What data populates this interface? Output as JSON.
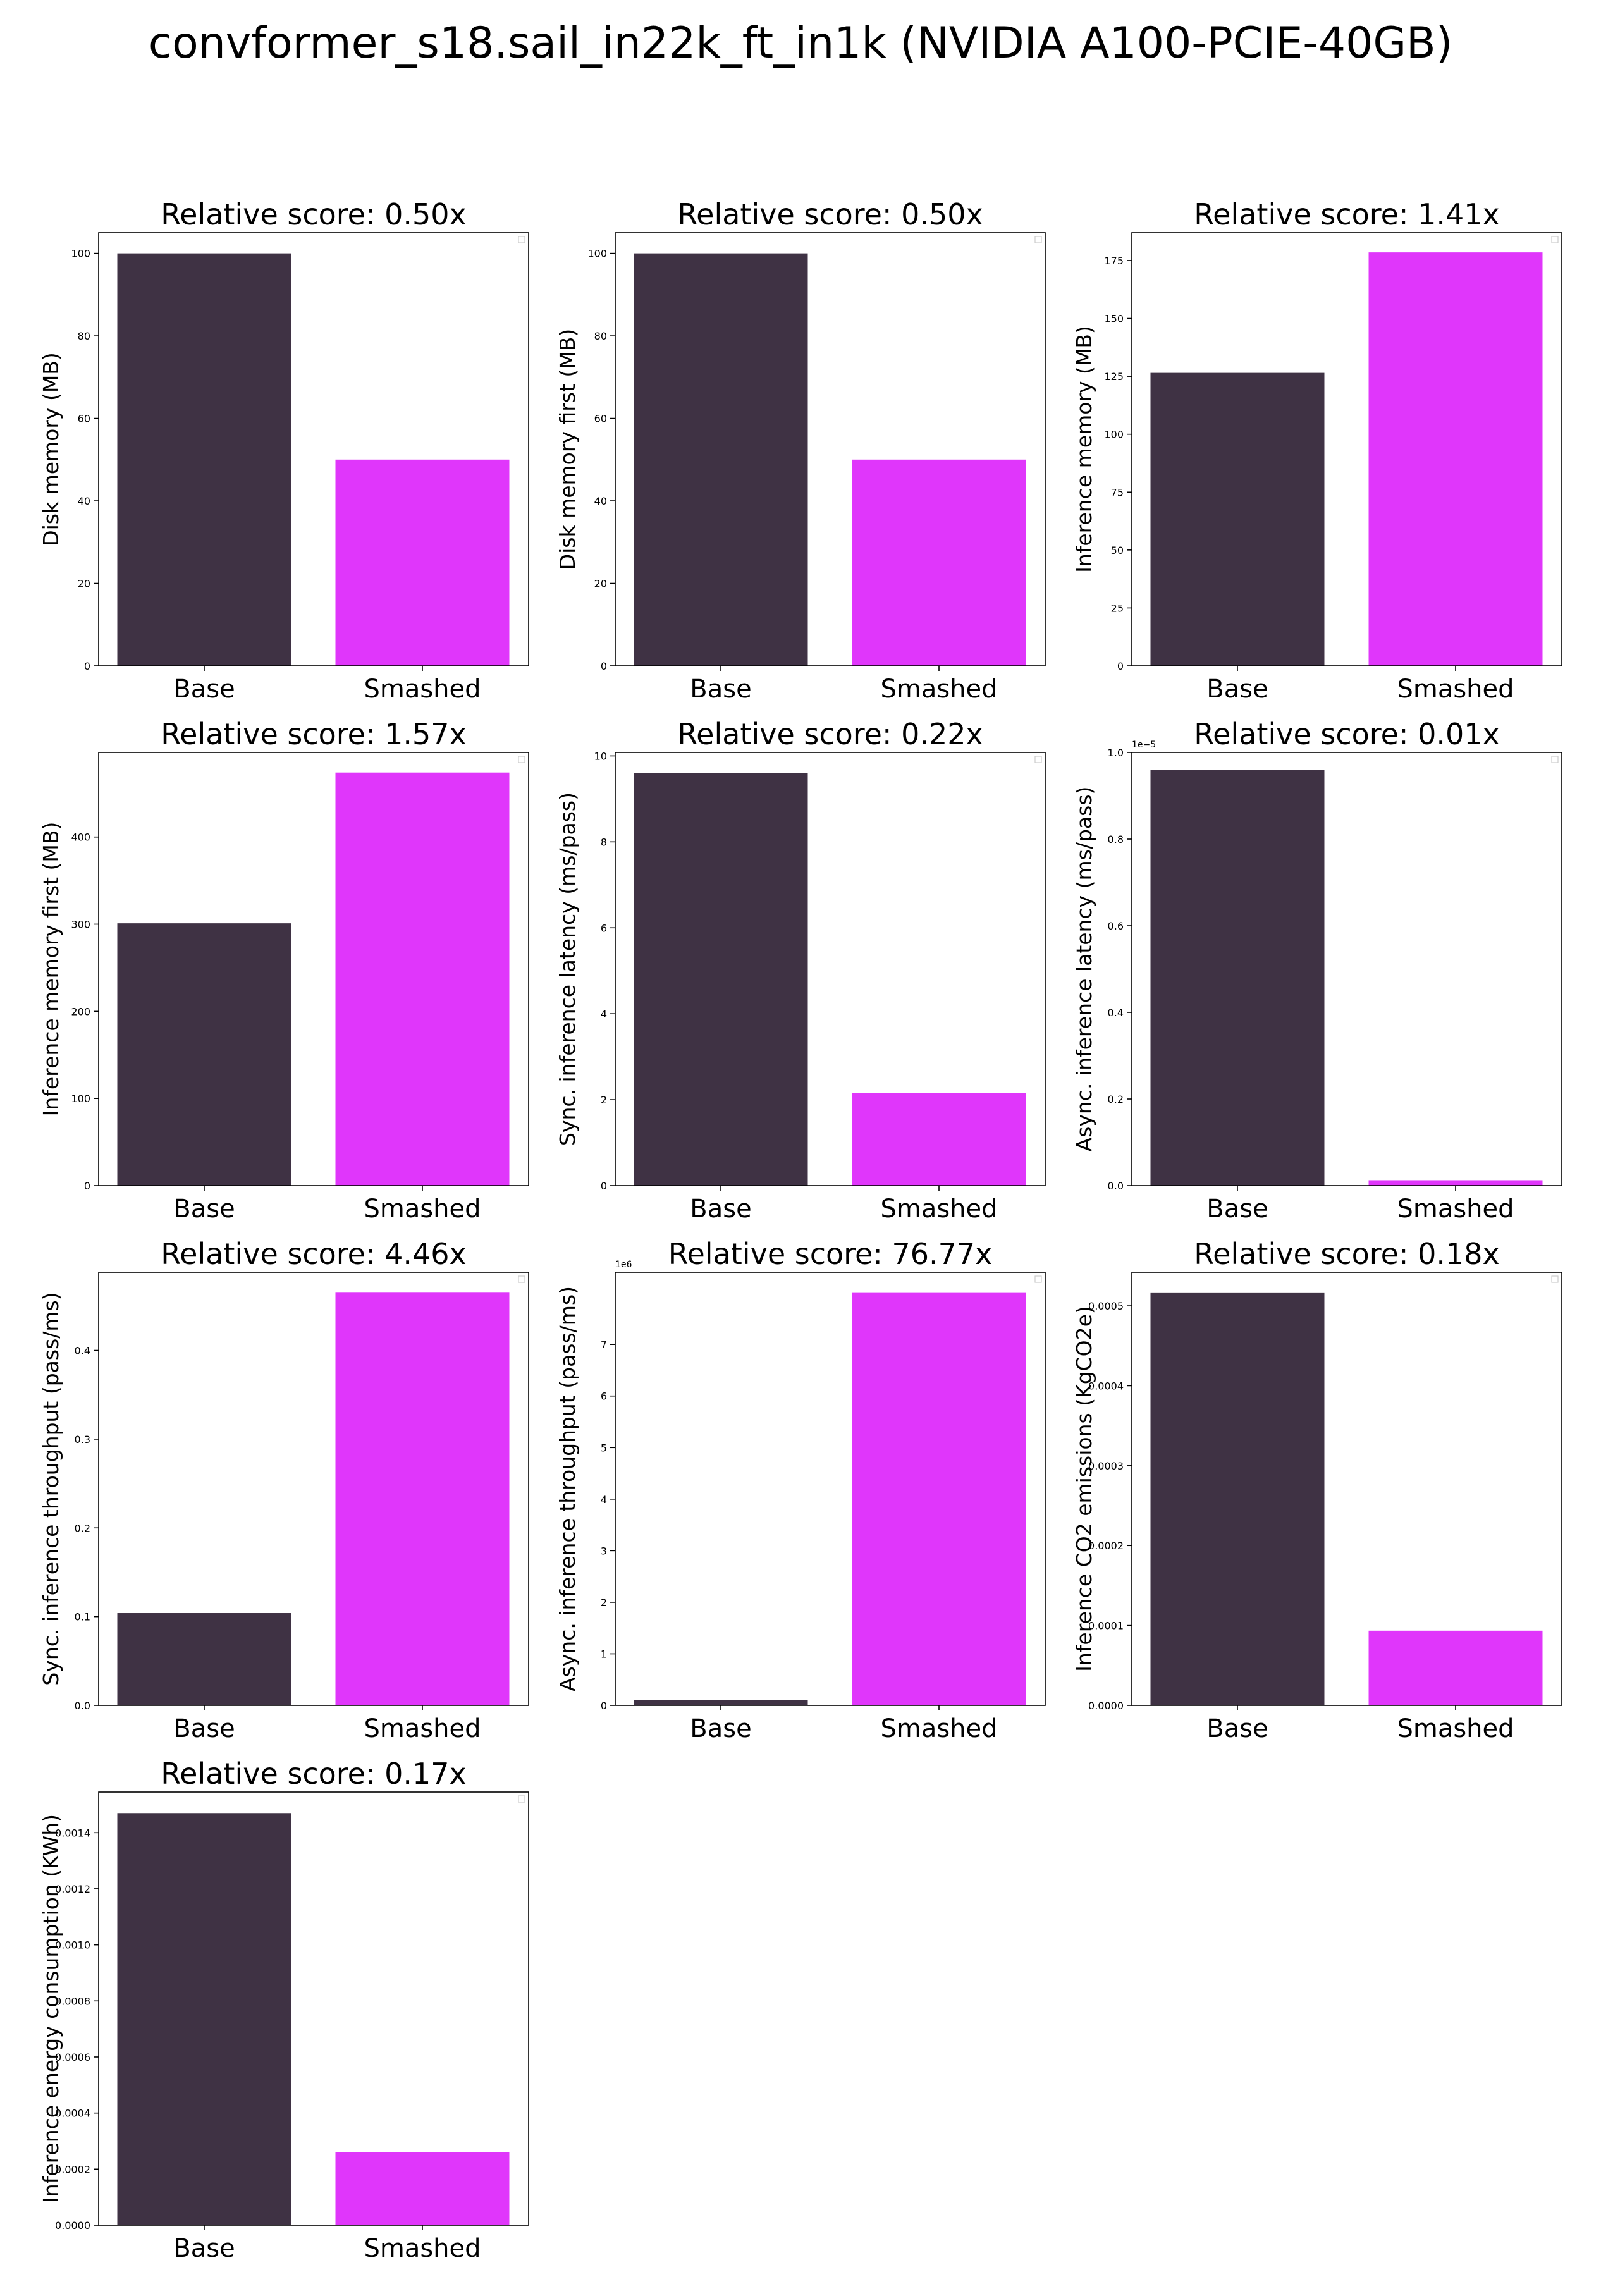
{
  "title": "convformer_s18.sail_in22k_ft_in1k (NVIDIA A100-PCIE-40GB)",
  "colors": {
    "base": "#3f3244",
    "smashed": "#e036fb",
    "axis": "#000000"
  },
  "chart_data": [
    {
      "type": "bar",
      "title": "Relative score: 0.50x",
      "ylabel": "Disk memory (MB)",
      "categories": [
        "Base",
        "Smashed"
      ],
      "values": [
        100,
        50
      ],
      "ylim": [
        0,
        105
      ],
      "yticks": [
        "0",
        "20",
        "40",
        "60",
        "80",
        "100"
      ],
      "tick_values": [
        0,
        20,
        40,
        60,
        80,
        100
      ],
      "offset_text": ""
    },
    {
      "type": "bar",
      "title": "Relative score: 0.50x",
      "ylabel": "Disk memory first (MB)",
      "categories": [
        "Base",
        "Smashed"
      ],
      "values": [
        100,
        50
      ],
      "ylim": [
        0,
        105
      ],
      "yticks": [
        "0",
        "20",
        "40",
        "60",
        "80",
        "100"
      ],
      "tick_values": [
        0,
        20,
        40,
        60,
        80,
        100
      ],
      "offset_text": ""
    },
    {
      "type": "bar",
      "title": "Relative score: 1.41x",
      "ylabel": "Inference memory (MB)",
      "categories": [
        "Base",
        "Smashed"
      ],
      "values": [
        126.5,
        178.5
      ],
      "ylim": [
        0,
        187
      ],
      "yticks": [
        "0",
        "25",
        "50",
        "75",
        "100",
        "125",
        "150",
        "175"
      ],
      "tick_values": [
        0,
        25,
        50,
        75,
        100,
        125,
        150,
        175
      ],
      "offset_text": ""
    },
    {
      "type": "bar",
      "title": "Relative score: 1.57x",
      "ylabel": "Inference memory first (MB)",
      "categories": [
        "Base",
        "Smashed"
      ],
      "values": [
        301,
        474
      ],
      "ylim": [
        0,
        497
      ],
      "yticks": [
        "0",
        "100",
        "200",
        "300",
        "400"
      ],
      "tick_values": [
        0,
        100,
        200,
        300,
        400
      ],
      "offset_text": ""
    },
    {
      "type": "bar",
      "title": "Relative score: 0.22x",
      "ylabel": "Sync. inference latency (ms/pass)",
      "categories": [
        "Base",
        "Smashed"
      ],
      "values": [
        9.6,
        2.15
      ],
      "ylim": [
        0,
        10.08
      ],
      "yticks": [
        "0",
        "2",
        "4",
        "6",
        "8",
        "10"
      ],
      "tick_values": [
        0,
        2,
        4,
        6,
        8,
        10
      ],
      "offset_text": ""
    },
    {
      "type": "bar",
      "title": "Relative score: 0.01x",
      "ylabel": "Async. inference latency (ms/pass)",
      "categories": [
        "Base",
        "Smashed"
      ],
      "values": [
        0.96,
        0.0125
      ],
      "ylim": [
        0,
        1.0
      ],
      "yticks": [
        "0.0",
        "0.2",
        "0.4",
        "0.6",
        "0.8",
        "1.0"
      ],
      "tick_values": [
        0,
        0.2,
        0.4,
        0.6,
        0.8,
        1.0
      ],
      "offset_text": "1e−5"
    },
    {
      "type": "bar",
      "title": "Relative score: 4.46x",
      "ylabel": "Sync. inference throughput (pass/ms)",
      "categories": [
        "Base",
        "Smashed"
      ],
      "values": [
        0.104,
        0.465
      ],
      "ylim": [
        0,
        0.488
      ],
      "yticks": [
        "0.0",
        "0.1",
        "0.2",
        "0.3",
        "0.4"
      ],
      "tick_values": [
        0,
        0.1,
        0.2,
        0.3,
        0.4
      ],
      "offset_text": ""
    },
    {
      "type": "bar",
      "title": "Relative score: 76.77x",
      "ylabel": "Async. inference throughput (pass/ms)",
      "categories": [
        "Base",
        "Smashed"
      ],
      "values": [
        0.104,
        8.0
      ],
      "ylim": [
        0,
        8.4
      ],
      "yticks": [
        "0",
        "1",
        "2",
        "3",
        "4",
        "5",
        "6",
        "7"
      ],
      "tick_values": [
        0,
        1,
        2,
        3,
        4,
        5,
        6,
        7
      ],
      "offset_text": "1e6"
    },
    {
      "type": "bar",
      "title": "Relative score: 0.18x",
      "ylabel": "Inference CO2 emissions (KgCO2e)",
      "categories": [
        "Base",
        "Smashed"
      ],
      "values": [
        0.000516,
        9.35e-05
      ],
      "ylim": [
        0,
        0.000542
      ],
      "yticks": [
        "0.0000",
        "0.0001",
        "0.0002",
        "0.0003",
        "0.0004",
        "0.0005"
      ],
      "tick_values": [
        0,
        0.0001,
        0.0002,
        0.0003,
        0.0004,
        0.0005
      ],
      "offset_text": ""
    },
    {
      "type": "bar",
      "title": "Relative score: 0.17x",
      "ylabel": "Inference energy consumption (KWh)",
      "categories": [
        "Base",
        "Smashed"
      ],
      "values": [
        0.00147,
        0.00026
      ],
      "ylim": [
        0,
        0.001545
      ],
      "yticks": [
        "0.0000",
        "0.0002",
        "0.0004",
        "0.0006",
        "0.0008",
        "0.0010",
        "0.0012",
        "0.0014"
      ],
      "tick_values": [
        0,
        0.0002,
        0.0004,
        0.0006,
        0.0008,
        0.001,
        0.0012,
        0.0014
      ],
      "offset_text": ""
    }
  ]
}
